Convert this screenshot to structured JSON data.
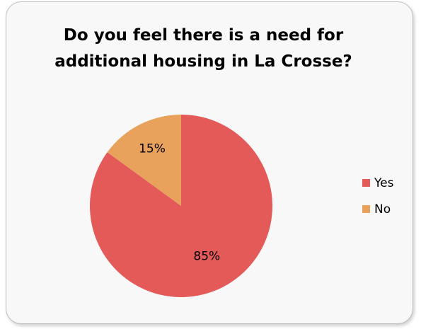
{
  "chart_data": {
    "type": "pie",
    "title": "Do you feel there is a need for additional housing in La Crosse?",
    "categories": [
      "Yes",
      "No"
    ],
    "values": [
      85,
      15
    ],
    "value_labels": [
      "85%",
      "15%"
    ],
    "colors": [
      "#e35a59",
      "#e9a25c"
    ],
    "legend": "right",
    "start": "top",
    "direction": "clockwise"
  }
}
